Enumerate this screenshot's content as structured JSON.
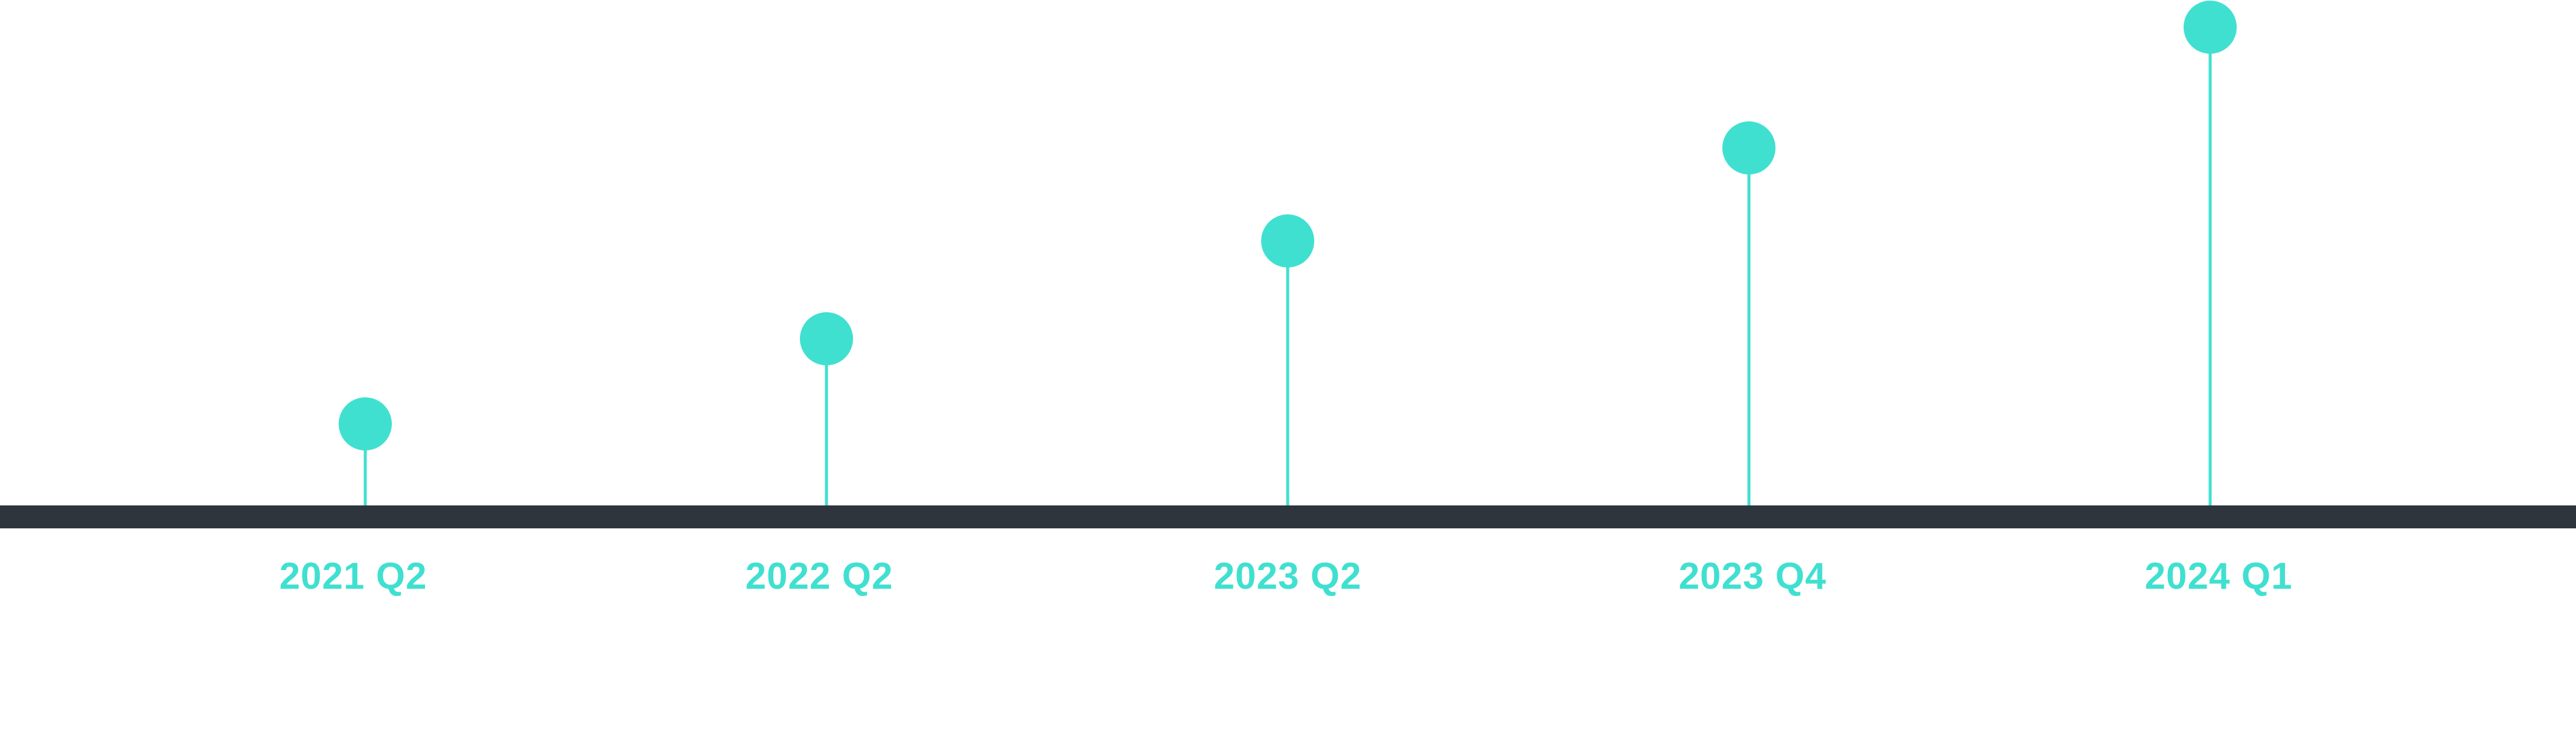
{
  "timeline": {
    "colors": {
      "accent": "#40E0D0",
      "axis": "#2F353C",
      "background": "#FFFFFF"
    },
    "milestones": [
      {
        "label": "2021 Q2"
      },
      {
        "label": "2022 Q2"
      },
      {
        "label": "2023 Q2"
      },
      {
        "label": "2023 Q4"
      },
      {
        "label": "2024 Q1"
      }
    ]
  }
}
